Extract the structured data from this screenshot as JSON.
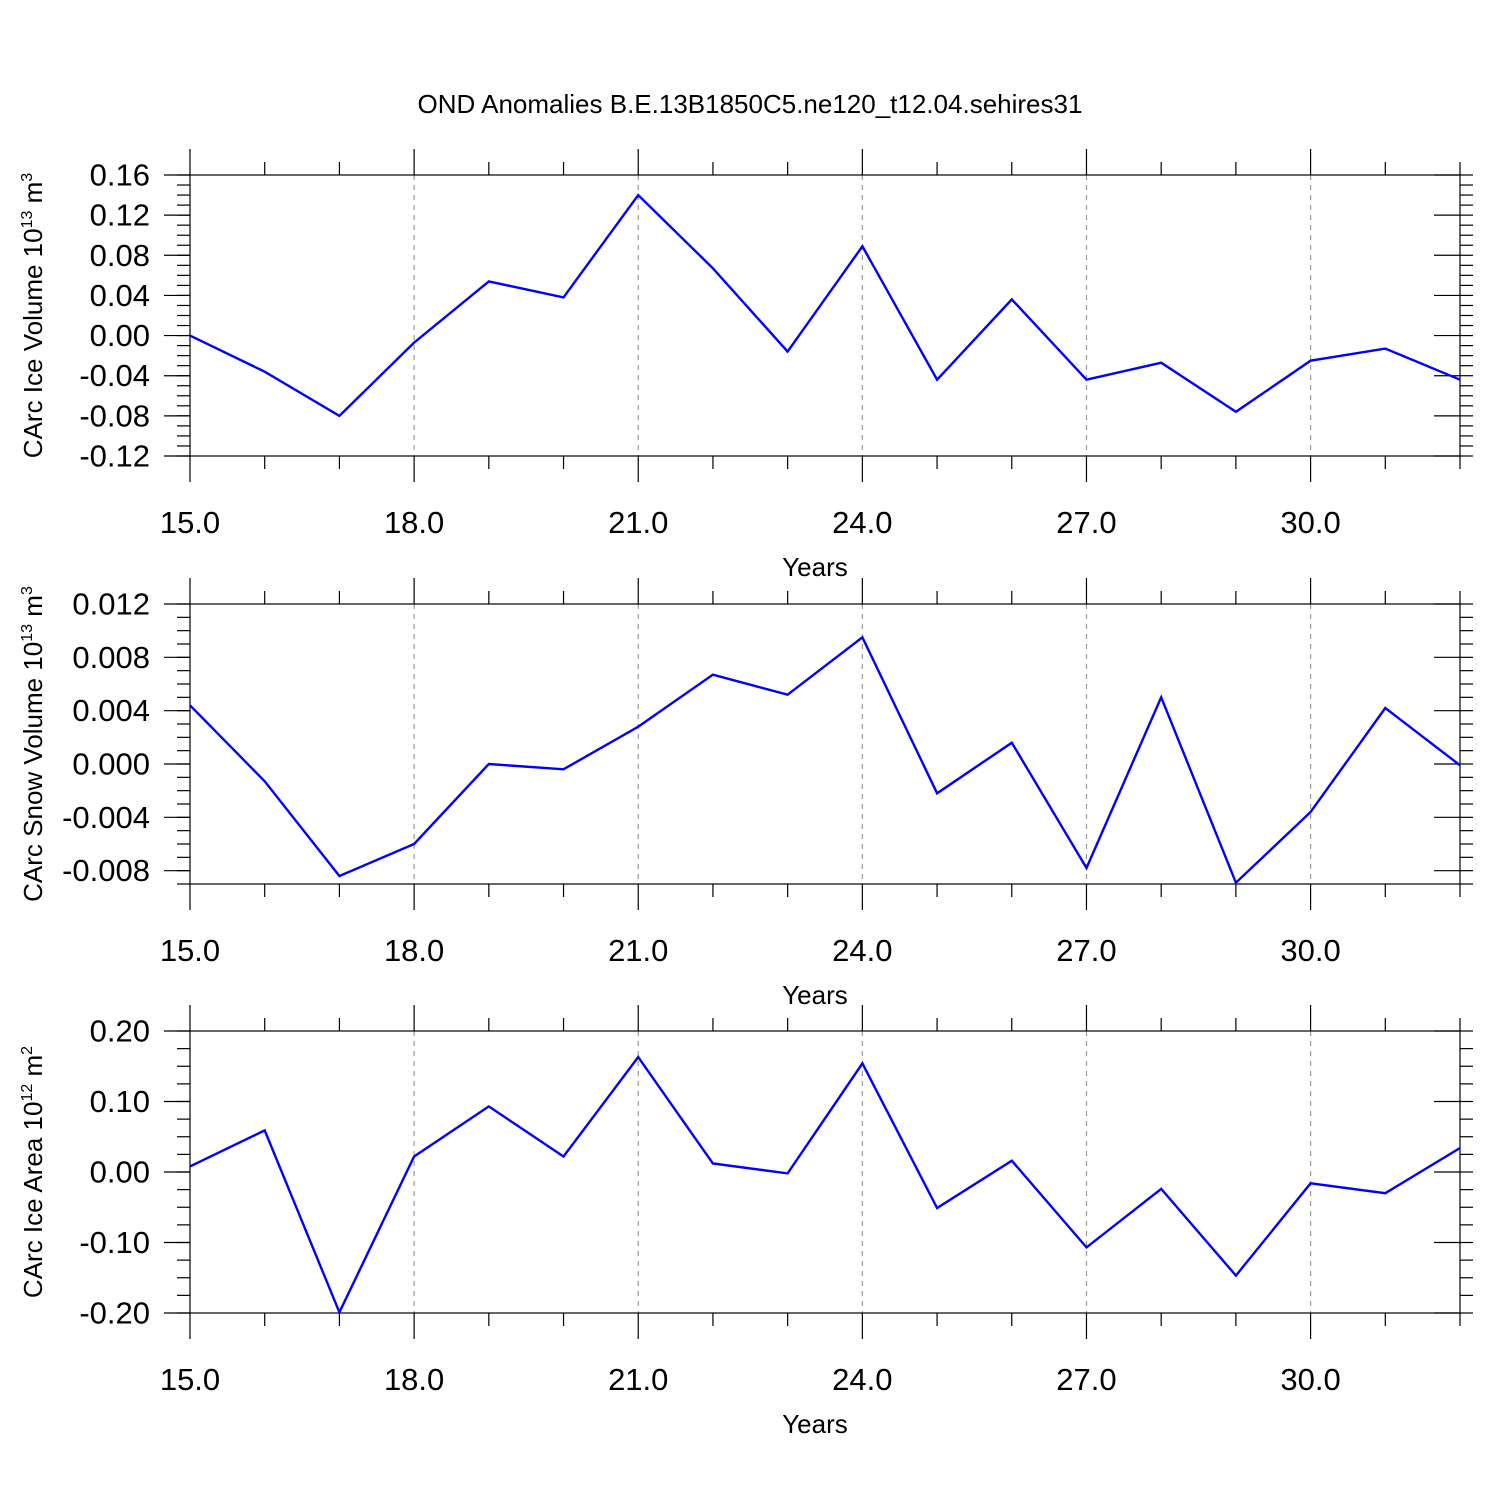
{
  "title": "OND Anomalies B.E.13B1850C5.ne120_t12.04.sehires31",
  "chart_data": [
    {
      "type": "line",
      "xlabel": "Years",
      "ylabel_main": "CArc Ice Volume 10",
      "ylabel_exp": "13",
      "ylabel_unit": " m",
      "ylabel_unit_exp": "3",
      "xlim": [
        15,
        32
      ],
      "ylim": [
        -0.12,
        0.16
      ],
      "x_ticks": [
        15,
        18,
        21,
        24,
        27,
        30
      ],
      "x_tick_labels": [
        "15.0",
        "18.0",
        "21.0",
        "24.0",
        "27.0",
        "30.0"
      ],
      "y_ticks": [
        -0.12,
        -0.08,
        -0.04,
        0.0,
        0.04,
        0.08,
        0.12,
        0.16
      ],
      "y_tick_labels": [
        "-0.12",
        "-0.08",
        "-0.04",
        "0.00",
        "0.04",
        "0.08",
        "0.12",
        "0.16"
      ],
      "grid": "vertical dashed at major x ticks",
      "color": "#0000ff",
      "x": [
        15,
        16,
        17,
        18,
        19,
        20,
        21,
        22,
        23,
        24,
        25,
        26,
        27,
        28,
        29,
        30,
        31,
        32
      ],
      "values": [
        0.0,
        -0.036,
        -0.08,
        -0.007,
        0.054,
        0.038,
        0.14,
        0.067,
        -0.016,
        0.089,
        -0.044,
        0.036,
        -0.044,
        -0.027,
        -0.076,
        -0.025,
        -0.013,
        -0.044
      ]
    },
    {
      "type": "line",
      "xlabel": "Years",
      "ylabel_main": "CArc Snow Volume 10",
      "ylabel_exp": "13",
      "ylabel_unit": " m",
      "ylabel_unit_exp": "3",
      "xlim": [
        15,
        32
      ],
      "ylim": [
        -0.009,
        0.012
      ],
      "x_ticks": [
        15,
        18,
        21,
        24,
        27,
        30
      ],
      "x_tick_labels": [
        "15.0",
        "18.0",
        "21.0",
        "24.0",
        "27.0",
        "30.0"
      ],
      "y_ticks": [
        -0.008,
        -0.004,
        0.0,
        0.004,
        0.008,
        0.012
      ],
      "y_tick_labels": [
        "-0.008",
        "-0.004",
        "0.000",
        "0.004",
        "0.008",
        "0.012"
      ],
      "grid": "vertical dashed at major x ticks",
      "color": "#0000ff",
      "x": [
        15,
        16,
        17,
        18,
        19,
        20,
        21,
        22,
        23,
        24,
        25,
        26,
        27,
        28,
        29,
        30,
        31,
        32
      ],
      "values": [
        0.0044,
        -0.0013,
        -0.0084,
        -0.006,
        0.0,
        -0.0004,
        0.0028,
        0.0067,
        0.0052,
        0.0095,
        -0.0022,
        0.0016,
        -0.0078,
        0.005,
        -0.0089,
        -0.0036,
        0.0042,
        -0.0001
      ]
    },
    {
      "type": "line",
      "xlabel": "Years",
      "ylabel_main": "CArc Ice Area 10",
      "ylabel_exp": "12",
      "ylabel_unit": " m",
      "ylabel_unit_exp": "2",
      "xlim": [
        15,
        32
      ],
      "ylim": [
        -0.2,
        0.2
      ],
      "x_ticks": [
        15,
        18,
        21,
        24,
        27,
        30
      ],
      "x_tick_labels": [
        "15.0",
        "18.0",
        "21.0",
        "24.0",
        "27.0",
        "30.0"
      ],
      "y_ticks": [
        -0.2,
        -0.1,
        0.0,
        0.1,
        0.2
      ],
      "y_tick_labels": [
        "-0.20",
        "-0.10",
        "0.00",
        "0.10",
        "0.20"
      ],
      "grid": "vertical dashed at major x ticks",
      "color": "#0000ff",
      "x": [
        15,
        16,
        17,
        18,
        19,
        20,
        21,
        22,
        23,
        24,
        25,
        26,
        27,
        28,
        29,
        30,
        31,
        32
      ],
      "values": [
        0.008,
        0.059,
        -0.199,
        0.022,
        0.093,
        0.022,
        0.163,
        0.012,
        -0.002,
        0.154,
        -0.051,
        0.016,
        -0.107,
        -0.024,
        -0.147,
        -0.016,
        -0.03,
        0.034
      ]
    }
  ]
}
